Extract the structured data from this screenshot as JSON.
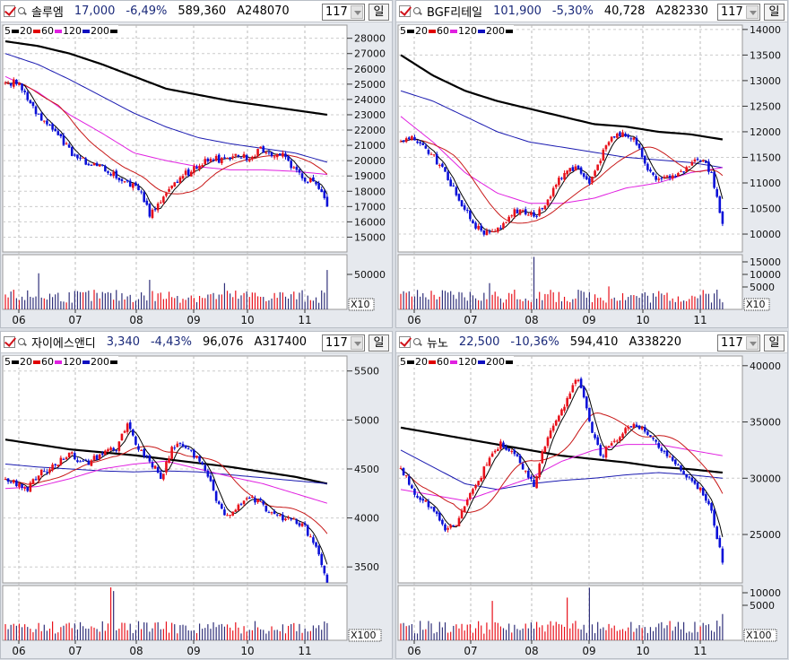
{
  "colors": {
    "up": "#e8101a",
    "down": "#0a10d8",
    "ma5": "#000000",
    "ma20": "#c81818",
    "ma60": "#e020e0",
    "ma120": "#1a1ab0",
    "ma200": "#000000"
  },
  "legend": [
    {
      "label": "5",
      "color": "#000000"
    },
    {
      "label": "20",
      "color": "#e00000"
    },
    {
      "label": "60",
      "color": "#e020e0"
    },
    {
      "label": "120",
      "color": "#1010c0"
    },
    {
      "label": "200",
      "color": "#000000"
    }
  ],
  "charts": [
    {
      "name": "솔루엠",
      "price": "17,000",
      "change": "-6,49%",
      "volume": "589,360",
      "code": "A248070",
      "period": "117",
      "unit": "일",
      "y_range": [
        14030,
        28860
      ],
      "y_ticks": [
        28000,
        27000,
        26000,
        25000,
        24000,
        23000,
        22000,
        21000,
        20000,
        19000,
        18000,
        17000,
        16000,
        15000
      ],
      "months": [
        "06",
        "07",
        "08",
        "09",
        "10",
        "11"
      ],
      "vol_labels": [
        "50000"
      ],
      "vol_unit": "X10",
      "closes": [
        25000,
        25200,
        24000,
        23000,
        22200,
        21500,
        20500,
        20000,
        19800,
        19500,
        19000,
        18500,
        18200,
        16500,
        17500,
        18500,
        19000,
        19500,
        20000,
        20100,
        20000,
        20300,
        20200,
        20700,
        20500,
        20400,
        19500,
        18800,
        18500,
        17000
      ],
      "ma60": [
        25500,
        24500,
        23000,
        21800,
        20500,
        20000,
        19600,
        19400,
        19400,
        19300,
        19100
      ],
      "ma120": [
        27000,
        26300,
        25300,
        24200,
        23100,
        22200,
        21500,
        21100,
        20800,
        20500,
        19900
      ],
      "ma200": [
        27800,
        27500,
        27000,
        26300,
        25500,
        24700,
        24300,
        23900,
        23600,
        23300,
        23000
      ],
      "vol_spikes": [
        [
          12,
          2.2
        ],
        [
          52,
          1.8
        ],
        [
          79,
          1.6
        ],
        [
          116,
          2.4
        ]
      ]
    },
    {
      "name": "BGF리테일",
      "price": "101,900",
      "change": "-5,30%",
      "volume": "40,728",
      "code": "A282330",
      "period": "117",
      "unit": "일",
      "y_range": [
        9650,
        14085
      ],
      "y_ticks": [
        14000,
        13500,
        13000,
        12500,
        12000,
        11500,
        11000,
        10500,
        10000
      ],
      "months": [
        "06",
        "07",
        "08",
        "09",
        "10",
        "11"
      ],
      "vol_labels": [
        "15000",
        "10000",
        "5000"
      ],
      "vol_unit": "X10",
      "closes": [
        11800,
        11900,
        11700,
        11500,
        11200,
        10800,
        10400,
        10100,
        10000,
        10100,
        10400,
        10500,
        10300,
        10600,
        11000,
        11300,
        11300,
        11000,
        11500,
        11900,
        12000,
        11900,
        11400,
        11000,
        11100,
        11200,
        11300,
        11500,
        11200,
        10200
      ],
      "ma60": [
        12300,
        11800,
        11200,
        10800,
        10600,
        10600,
        10700,
        10900,
        11000,
        11200,
        11300
      ],
      "ma120": [
        12800,
        12600,
        12300,
        12000,
        11800,
        11700,
        11600,
        11500,
        11450,
        11400,
        11300
      ],
      "ma200": [
        13500,
        13100,
        12800,
        12600,
        12450,
        12300,
        12150,
        12100,
        12000,
        11950,
        11850
      ],
      "vol_spikes": [
        [
          48,
          3.2
        ],
        [
          32,
          1.6
        ],
        [
          75,
          1.4
        ],
        [
          114,
          1.2
        ]
      ]
    },
    {
      "name": "자이에스앤디",
      "price": "3,340",
      "change": "-4,43%",
      "volume": "96,076",
      "code": "A317400",
      "period": "117",
      "unit": "일",
      "y_range": [
        3337,
        5653
      ],
      "y_ticks": [
        5500,
        5000,
        4500,
        4000,
        3500
      ],
      "months": [
        "06",
        "07",
        "08",
        "09",
        "10",
        "11"
      ],
      "vol_labels": [],
      "vol_unit": "X100",
      "closes": [
        4400,
        4350,
        4300,
        4450,
        4500,
        4600,
        4650,
        4550,
        4600,
        4700,
        4700,
        4950,
        4700,
        4600,
        4400,
        4700,
        4750,
        4650,
        4500,
        4200,
        4000,
        4150,
        4200,
        4150,
        4050,
        4000,
        3980,
        3900,
        3700,
        3340
      ],
      "ma60": [
        4300,
        4320,
        4400,
        4500,
        4550,
        4580,
        4500,
        4420,
        4350,
        4250,
        4150
      ],
      "ma120": [
        4550,
        4520,
        4500,
        4480,
        4470,
        4480,
        4470,
        4440,
        4410,
        4380,
        4350
      ],
      "ma200": [
        4800,
        4750,
        4700,
        4670,
        4640,
        4600,
        4560,
        4520,
        4470,
        4420,
        4350
      ],
      "vol_spikes": [
        [
          38,
          12
        ],
        [
          39,
          3
        ]
      ]
    },
    {
      "name": "뉴노",
      "price": "22,500",
      "change": "-10,36%",
      "volume": "594,410",
      "code": "A338220",
      "period": "117",
      "unit": "일",
      "y_range": [
        20700,
        40860
      ],
      "y_ticks": [
        40000,
        35000,
        30000,
        25000
      ],
      "months": [
        "06",
        "07",
        "08",
        "09",
        "10",
        "11"
      ],
      "vol_labels": [
        "10000",
        "5000"
      ],
      "vol_unit": "X100",
      "closes": [
        31000,
        29000,
        28000,
        27000,
        25500,
        26000,
        28000,
        29500,
        32000,
        33000,
        32500,
        31000,
        29500,
        33000,
        35000,
        37000,
        39000,
        35000,
        32000,
        33000,
        34000,
        35000,
        34000,
        33000,
        32000,
        31000,
        30000,
        29000,
        27000,
        22500
      ],
      "ma60": [
        29000,
        28500,
        28000,
        29000,
        30000,
        31500,
        32500,
        33000,
        33000,
        32500,
        32000
      ],
      "ma120": [
        32500,
        31000,
        29500,
        29000,
        29500,
        29800,
        30000,
        30300,
        30500,
        30300,
        30000
      ],
      "ma200": [
        34500,
        34000,
        33500,
        33000,
        32500,
        32000,
        31700,
        31400,
        31000,
        30800,
        30500
      ],
      "vol_spikes": [
        [
          33,
          2.4
        ],
        [
          68,
          3.2
        ],
        [
          60,
          2.6
        ],
        [
          116,
          1.6
        ]
      ]
    }
  ]
}
